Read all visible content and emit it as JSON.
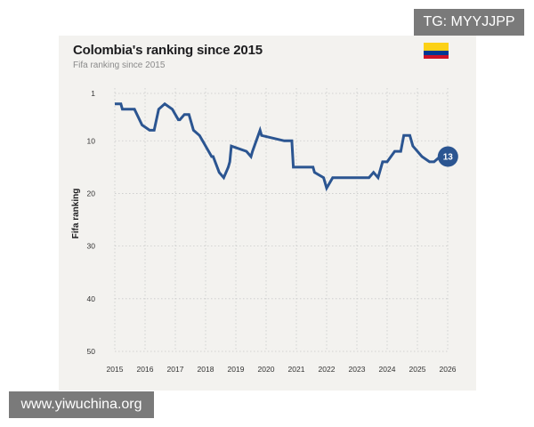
{
  "watermark_top": "TG: MYYJJPP",
  "watermark_bottom": "www.yiwuchina.org",
  "flag": {
    "icon": "colombia-flag-icon",
    "colors": [
      "#fcd116",
      "#003893",
      "#ce1126"
    ]
  },
  "chart_data": {
    "type": "line",
    "title": "Colombia's ranking since 2015",
    "subtitle": "Fifa ranking since 2015",
    "xlabel": "",
    "ylabel": "Fifa ranking",
    "xlim": [
      2015,
      2026
    ],
    "ylim": [
      50,
      1
    ],
    "y_inverted": true,
    "x_ticks": [
      "2015",
      "2016",
      "2017",
      "2018",
      "2019",
      "2020",
      "2021",
      "2022",
      "2023",
      "2024",
      "2025",
      "2026"
    ],
    "x_tick_values": [
      2015,
      2016,
      2017,
      2018,
      2019,
      2020,
      2021,
      2022,
      2023,
      2024,
      2025,
      2026
    ],
    "y_ticks": [
      "1",
      "10",
      "20",
      "30",
      "40",
      "50"
    ],
    "y_tick_values": [
      1,
      10,
      20,
      30,
      40,
      50
    ],
    "grid": true,
    "line_color": "#2b5591",
    "series": [
      {
        "x": [
          2015.0,
          2015.2,
          2015.25,
          2015.65,
          2015.9,
          2016.15,
          2016.3,
          2016.45,
          2016.65,
          2016.9,
          2017.1,
          2017.15,
          2017.3,
          2017.45,
          2017.6,
          2017.8,
          2018.2,
          2018.25,
          2018.45,
          2018.6,
          2018.75,
          2018.8,
          2018.85,
          2019.35,
          2019.5,
          2019.55,
          2019.8,
          2019.85,
          2020.6,
          2020.85,
          2020.9,
          2021.55,
          2021.6,
          2021.9,
          2022.0,
          2022.1,
          2022.2,
          2023.4,
          2023.55,
          2023.7,
          2023.85,
          2024.0,
          2024.25,
          2024.45,
          2024.55,
          2024.75,
          2024.85,
          2025.15,
          2025.4,
          2025.55,
          2025.75,
          2025.95
        ],
        "y": [
          3,
          3,
          4,
          4,
          7,
          8,
          8,
          4,
          3,
          4,
          6,
          6,
          5,
          5,
          8,
          9,
          13,
          13,
          16,
          17,
          15,
          14,
          11,
          12,
          13,
          12,
          8,
          9,
          10,
          10,
          15,
          15,
          16,
          17,
          19,
          18,
          17,
          17,
          16,
          17,
          14,
          14,
          12,
          12,
          9,
          9,
          11,
          13,
          14,
          14,
          13,
          13
        ],
        "end_label": "13"
      }
    ]
  }
}
